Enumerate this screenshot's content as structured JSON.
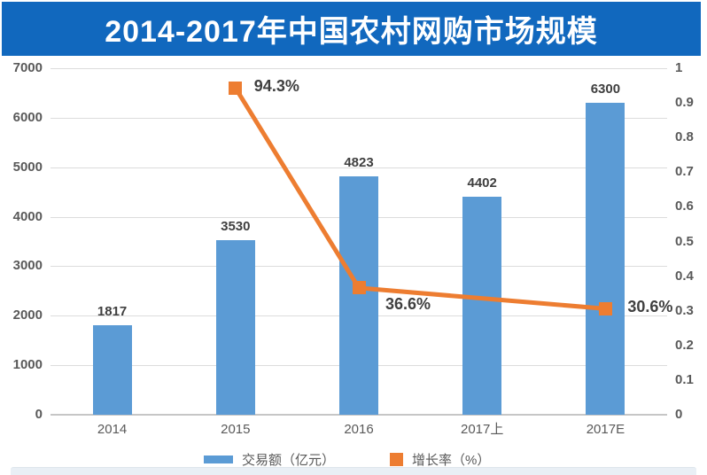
{
  "colors": {
    "banner": "#1168BE",
    "bar": "#5B9BD5",
    "line": "#ED7D31",
    "grid": "#DCDCDC",
    "axis": "#C6C6C6",
    "tick_text": "#595959",
    "value_text": "#3F3F3F"
  },
  "legend": {
    "bar_label": "交易额（亿元）",
    "line_label": "增长率（%）"
  },
  "chart_data": {
    "type": "combo",
    "title": "2014-2017年中国农村网购市场规模",
    "categories": [
      "2014",
      "2015",
      "2016",
      "2017上",
      "2017E"
    ],
    "series": [
      {
        "name": "交易额（亿元）",
        "type": "bar",
        "axis": "left",
        "values": [
          1817,
          3530,
          4823,
          4402,
          6300
        ],
        "value_labels": [
          "1817",
          "3530",
          "4823",
          "4402",
          "6300"
        ],
        "color": "#5B9BD5"
      },
      {
        "name": "增长率（%）",
        "type": "line",
        "axis": "right",
        "x": [
          "2015",
          "2016",
          "2017E"
        ],
        "values": [
          0.943,
          0.366,
          0.306
        ],
        "point_labels": [
          "94.3%",
          "36.6%",
          "30.6%"
        ],
        "color": "#ED7D31"
      }
    ],
    "left_axis": {
      "min": 0,
      "max": 7000,
      "step": 1000,
      "ticks": [
        "0",
        "1000",
        "2000",
        "3000",
        "4000",
        "5000",
        "6000",
        "7000"
      ]
    },
    "right_axis": {
      "min": 0,
      "max": 1,
      "step": 0.1,
      "ticks": [
        "0",
        "0.1",
        "0.2",
        "0.3",
        "0.4",
        "0.5",
        "0.6",
        "0.7",
        "0.8",
        "0.9",
        "1"
      ]
    },
    "grid": true,
    "legend_position": "bottom",
    "xlabel": "",
    "ylabel_left": "交易额（亿元）",
    "ylabel_right": "增长率（%）"
  }
}
